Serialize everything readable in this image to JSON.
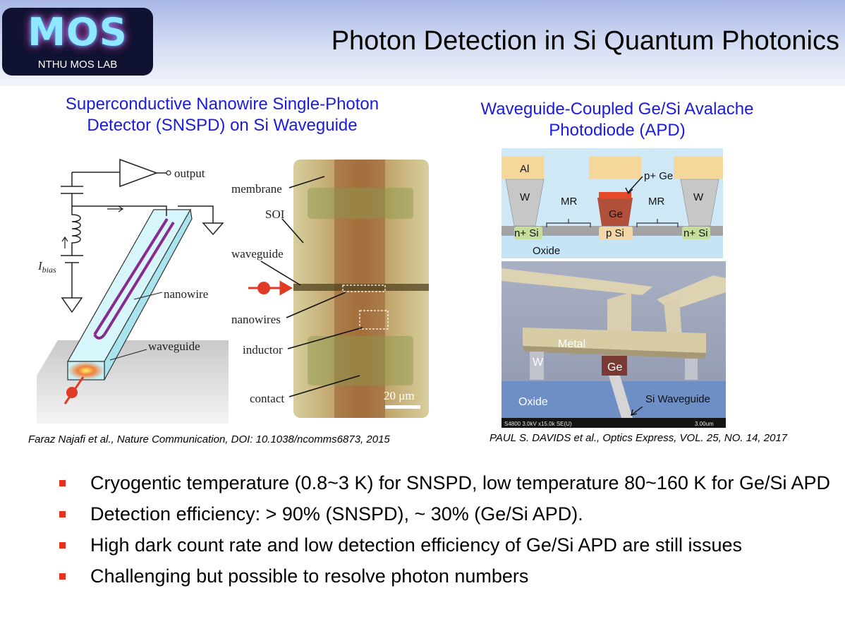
{
  "logo": {
    "mark": "MOS",
    "subtitle": "NTHU MOS LAB"
  },
  "title": "Photon Detection in Si Quantum Photonics",
  "left_panel": {
    "caption_line1": "Superconductive Nanowire Single-Photon",
    "caption_line2": "Detector (SNSPD) on Si Waveguide",
    "schematic_labels": {
      "output": "output",
      "ibias": "I",
      "ibias_sub": "bias",
      "nanowire": "nanowire",
      "waveguide": "waveguide"
    },
    "micrograph_labels": {
      "membrane": "membrane",
      "soi": "SOI",
      "waveguide": "waveguide",
      "nanowires": "nanowires",
      "inductor": "inductor",
      "contact": "contact",
      "scale": "20 μm"
    },
    "citation": "Faraz Najafi et al., Nature Communication, DOI: 10.1038/ncomms6873, 2015"
  },
  "right_panel": {
    "caption_line1": "Waveguide-Coupled Ge/Si Avalache",
    "caption_line2": "Photodiode (APD)",
    "cross_section_labels": {
      "al": "Al",
      "p_ge": "p+ Ge",
      "w_left": "W",
      "w_right": "W",
      "mr_left": "MR",
      "mr_right": "MR",
      "ge": "Ge",
      "n_si_left": "n+ Si",
      "p_si": "p Si",
      "n_si_right": "n+ Si",
      "oxide": "Oxide"
    },
    "sem_labels": {
      "metal": "Metal",
      "w": "W",
      "ge": "Ge",
      "oxide": "Oxide",
      "si_waveguide": "Si Waveguide",
      "footer_left": "S4800 3.0kV x15.0k SE(U)",
      "footer_right": "3.00um"
    },
    "citation": "PAUL S. DAVIDS et al., Optics Express, VOL. 25, NO. 14, 2017"
  },
  "bullets": [
    "Cryogentic temperature (0.8~3 K) for SNSPD, low temperature 80~160 K for Ge/Si APD",
    "Detection efficiency: > 90% (SNSPD), ~ 30% (Ge/Si APD).",
    "High dark count rate and low detection efficiency of Ge/Si APD are still issues",
    "Challenging but possible to resolve photon numbers"
  ],
  "colors": {
    "caption": "#1b1be0",
    "bullet_marker": "#e8301e",
    "nanowire": "#8a2a8f",
    "waveguide": "#bfeff7",
    "photon": "#e03a25"
  }
}
